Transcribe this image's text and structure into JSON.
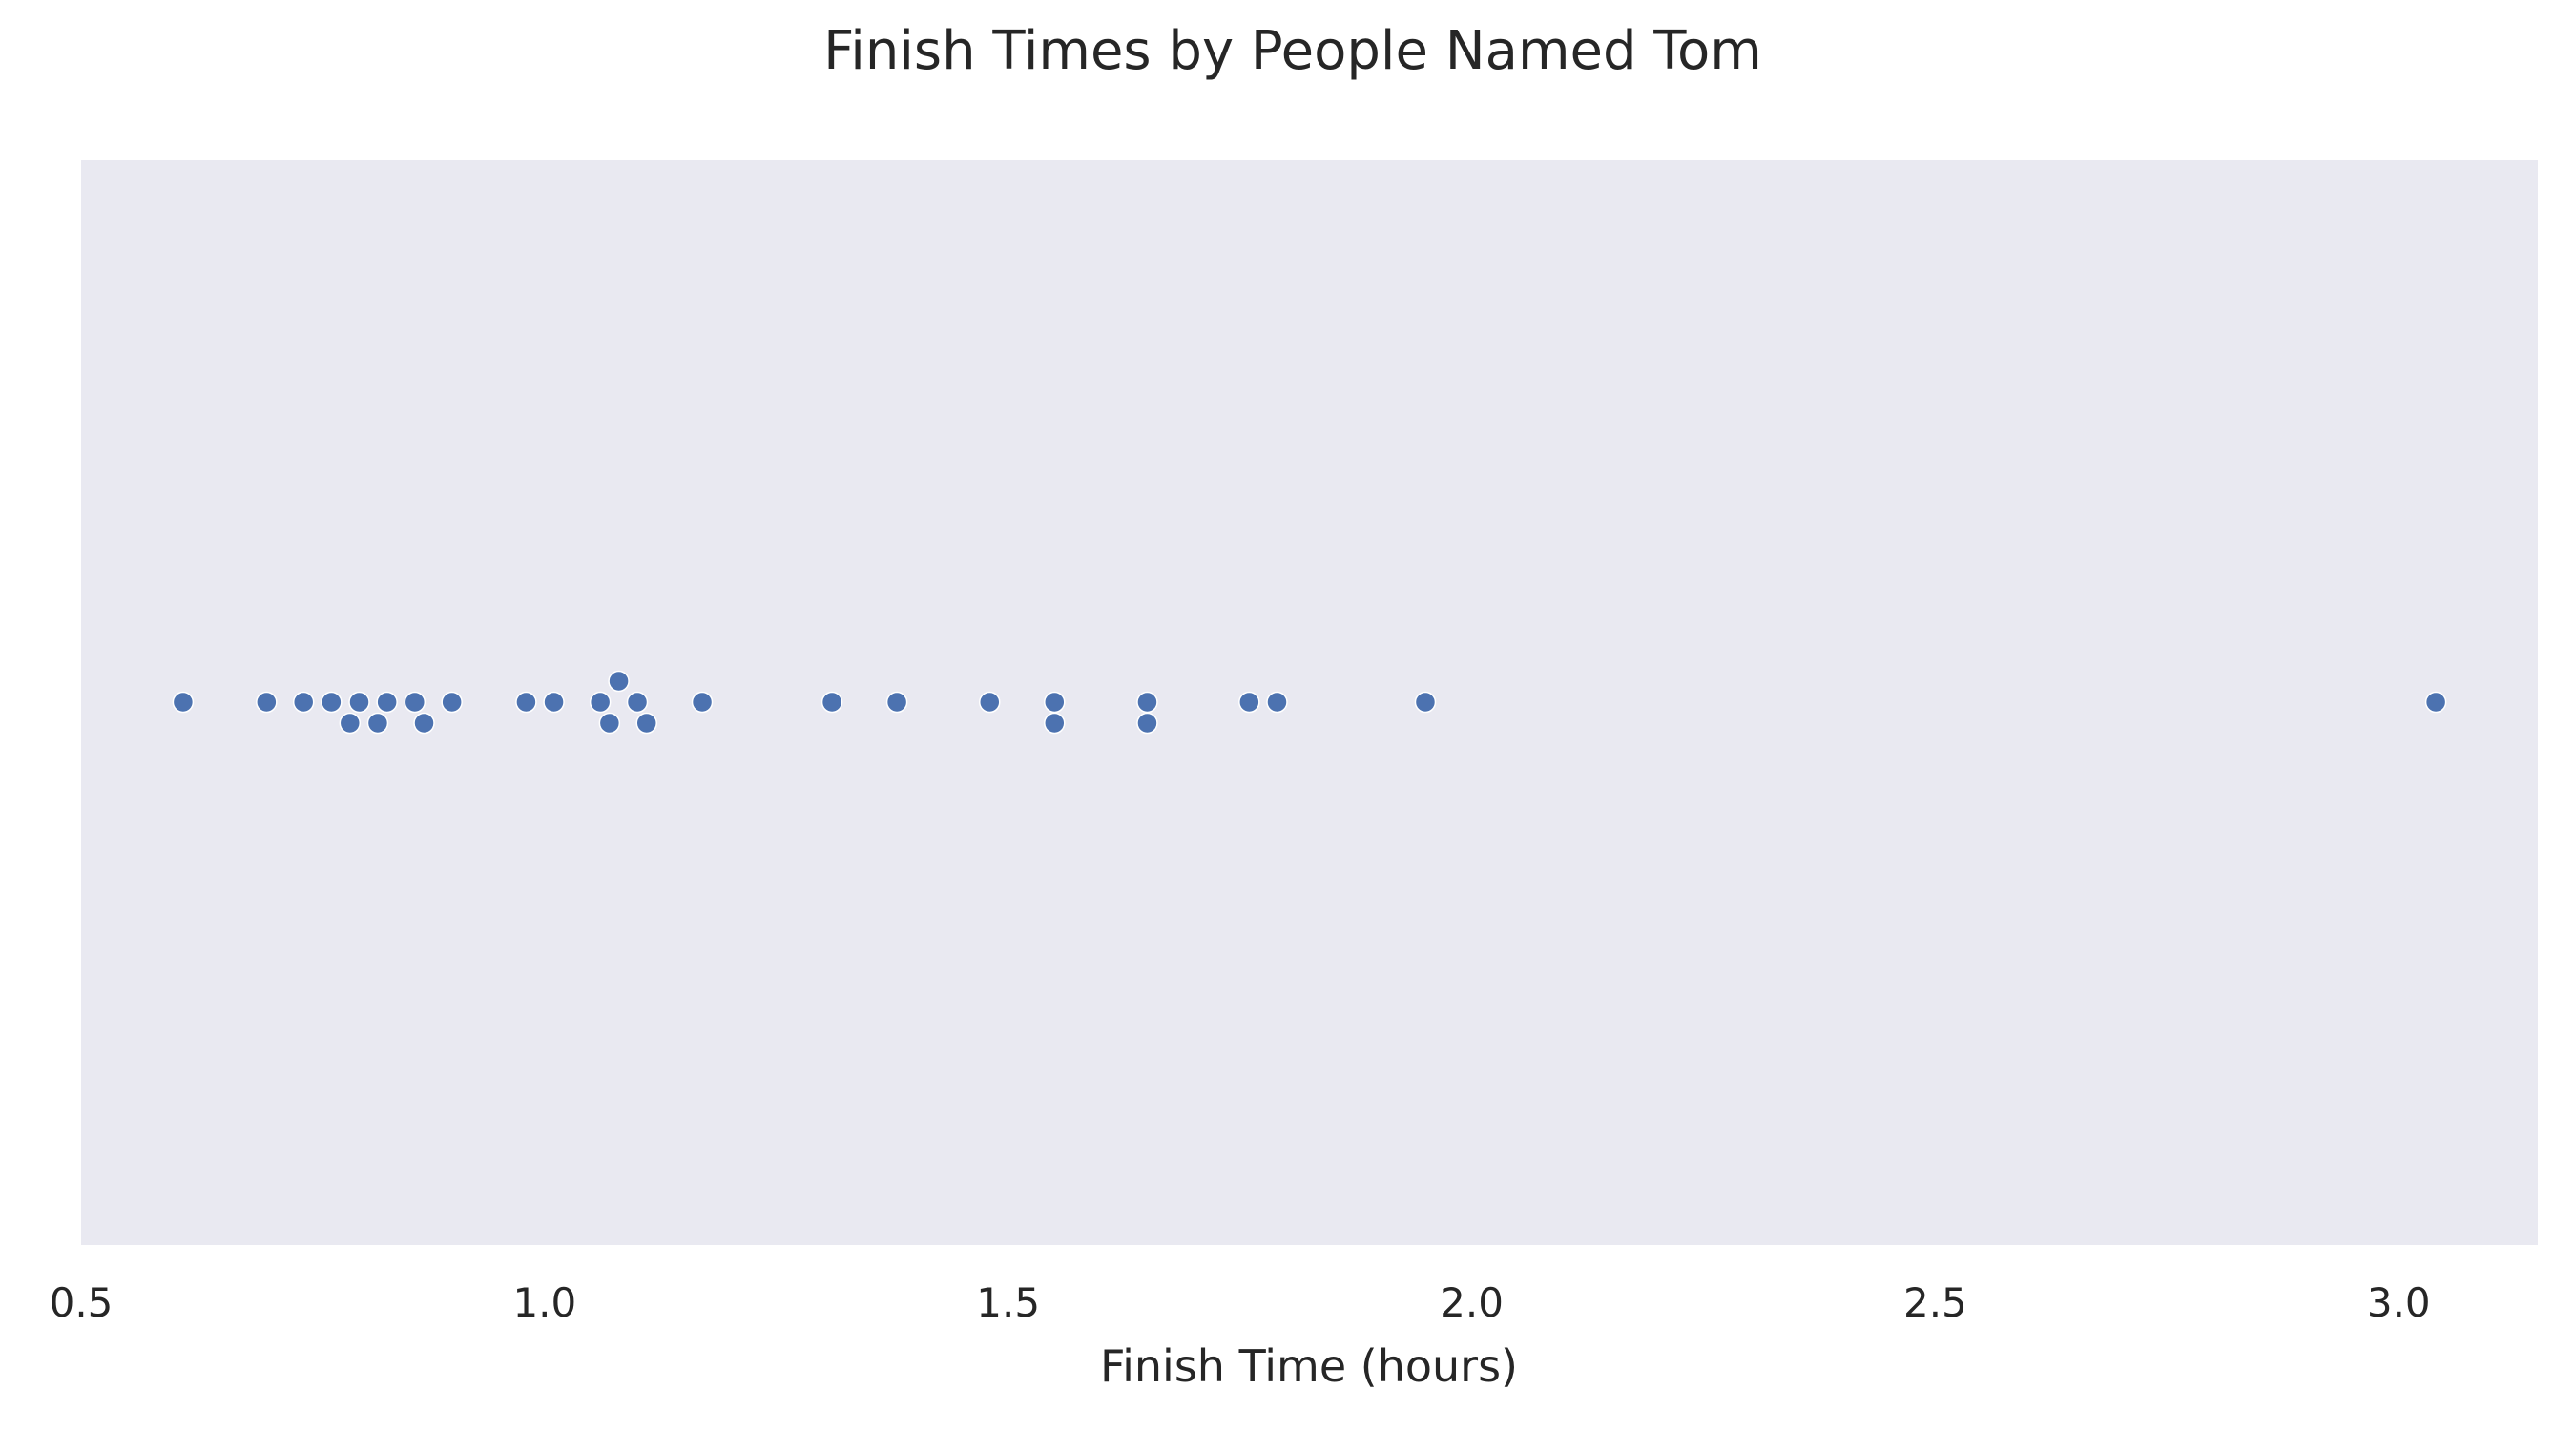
{
  "chart_data": {
    "type": "scatter",
    "subtype": "swarm",
    "title": "Finish Times by People Named Tom",
    "xlabel": "Finish Time (hours)",
    "ylabel": "",
    "xlim": [
      0.5,
      3.15
    ],
    "xticks": [
      0.5,
      1.0,
      1.5,
      2.0,
      2.5,
      3.0
    ],
    "xtick_labels": [
      "0.5",
      "1.0",
      "1.5",
      "2.0",
      "2.5",
      "3.0"
    ],
    "grid": false,
    "background": "#e9e9f1",
    "point_color": "#4c72b0",
    "values": [
      0.61,
      0.7,
      0.74,
      0.77,
      0.79,
      0.8,
      0.82,
      0.83,
      0.86,
      0.87,
      0.9,
      0.98,
      1.01,
      1.06,
      1.07,
      1.08,
      1.1,
      1.11,
      1.17,
      1.31,
      1.38,
      1.48,
      1.55,
      1.55,
      1.65,
      1.65,
      1.76,
      1.79,
      1.95,
      3.04
    ]
  }
}
